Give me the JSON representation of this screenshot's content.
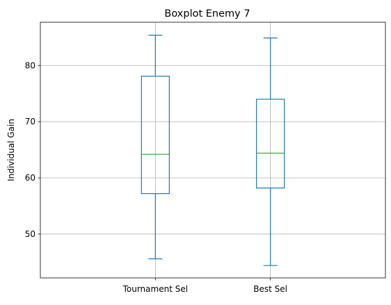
{
  "chart_data": {
    "type": "box",
    "title": "Boxplot Enemy 7",
    "xlabel": "",
    "ylabel": "Individual Gain",
    "categories": [
      "Tournament Sel",
      "Best Sel"
    ],
    "boxes": [
      {
        "category": "Tournament Sel",
        "whisker_low": 45.6,
        "q1": 57.2,
        "median": 64.2,
        "q3": 78.1,
        "whisker_high": 85.4
      },
      {
        "category": "Best Sel",
        "whisker_low": 44.4,
        "q1": 58.2,
        "median": 64.4,
        "q3": 74.0,
        "whisker_high": 84.9
      }
    ],
    "yticks": [
      50,
      60,
      70,
      80
    ],
    "ylim": [
      42.2,
      87.7
    ],
    "grid": true,
    "colors": {
      "box": "#1f77b4",
      "median": "#2ca02c",
      "grid": "#b0b0b0",
      "axes": "#000000"
    }
  }
}
